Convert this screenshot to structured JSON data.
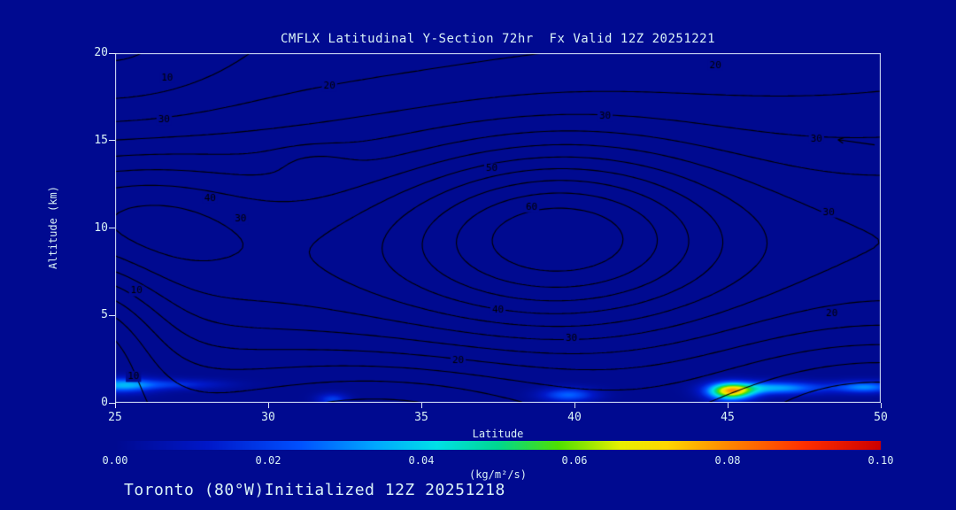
{
  "colors": {
    "background": "#000a90",
    "text": "#d9f2f6",
    "frame": "#dceafc",
    "contour": "#000000"
  },
  "chart_data": {
    "type": "contour",
    "title": "CMFLX Latitudinal Y-Section 72hr  Fx Valid 12Z 20251221",
    "caption": "Toronto (80°W)Initialized 12Z 20251218",
    "xlabel": "Latitude",
    "ylabel": "Altitude (km)",
    "xlim": [
      25,
      50
    ],
    "ylim": [
      0,
      20
    ],
    "x_ticks": [
      25,
      30,
      35,
      40,
      45,
      50
    ],
    "y_ticks": [
      0,
      5,
      10,
      15,
      20
    ],
    "grid": false,
    "contour_interval": 5,
    "contour_levels": [
      5,
      10,
      15,
      20,
      25,
      30,
      35,
      40,
      45,
      50,
      55,
      60,
      65
    ],
    "contour_labels": [
      {
        "value": 10,
        "lat": 26.7,
        "alt": 18.6
      },
      {
        "value": 20,
        "lat": 32.0,
        "alt": 18.1
      },
      {
        "value": 30,
        "lat": 26.6,
        "alt": 16.2
      },
      {
        "value": 30,
        "lat": 41.0,
        "alt": 16.4
      },
      {
        "value": 20,
        "lat": 44.6,
        "alt": 19.3
      },
      {
        "value": 40,
        "lat": 28.1,
        "alt": 11.7
      },
      {
        "value": 30,
        "lat": 29.1,
        "alt": 10.5
      },
      {
        "value": 50,
        "lat": 37.3,
        "alt": 13.4
      },
      {
        "value": 60,
        "lat": 38.6,
        "alt": 11.2
      },
      {
        "value": 40,
        "lat": 37.5,
        "alt": 5.3
      },
      {
        "value": 30,
        "lat": 39.9,
        "alt": 3.7
      },
      {
        "value": 20,
        "lat": 36.2,
        "alt": 2.4
      },
      {
        "value": 20,
        "lat": 48.4,
        "alt": 5.1
      },
      {
        "value": 30,
        "lat": 48.3,
        "alt": 10.9
      },
      {
        "value": 10,
        "lat": 25.7,
        "alt": 6.4
      },
      {
        "value": 10,
        "lat": 25.6,
        "alt": 1.5
      },
      {
        "value": 30,
        "lat": 47.9,
        "alt": 15.1
      }
    ],
    "annotations": [
      {
        "type": "arrow",
        "from_lat": 49.8,
        "from_alt": 14.75,
        "to_lat": 48.6,
        "to_alt": 15.05
      }
    ],
    "field_model": {
      "base": 8,
      "lat_slope": 0.3,
      "bumps": [
        {
          "a": 28,
          "lat": 37.5,
          "alt": 8.3,
          "sx": 9999,
          "sy": 7.5
        },
        {
          "a": 26,
          "lat": 39.5,
          "alt": 9.8,
          "sx": 5.0,
          "sy": 5.0
        },
        {
          "a": 10,
          "lat": 25.5,
          "alt": 10.5,
          "sx": 3.5,
          "sy": 3.5
        },
        {
          "a": 4,
          "lat": 31.5,
          "alt": 13.8,
          "sx": 1.3,
          "sy": 0.9
        },
        {
          "a": -10,
          "lat": 34.0,
          "alt": -0.5,
          "sx": 5.5,
          "sy": 3.2
        },
        {
          "a": -12,
          "lat": 50.0,
          "alt": -0.5,
          "sx": 5.5,
          "sy": 4.0
        },
        {
          "a": -10,
          "lat": 51.0,
          "alt": 6.0,
          "sx": 8.0,
          "sy": 8.0
        },
        {
          "a": -6,
          "lat": 25.0,
          "alt": 20.0,
          "sx": 4.0,
          "sy": 5.0
        },
        {
          "a": -20,
          "lat": 24.0,
          "alt": 4.0,
          "sx": 2.5,
          "sy": 5.0
        }
      ]
    },
    "shaded_blobs": [
      {
        "lat": 45.1,
        "alt": 0.65,
        "sx": 0.75,
        "sy": 0.5,
        "peak": 0.068
      },
      {
        "lat": 46.6,
        "alt": 0.85,
        "sx": 1.6,
        "sy": 0.38,
        "peak": 0.034
      },
      {
        "lat": 25.2,
        "alt": 1.0,
        "sx": 1.1,
        "sy": 0.45,
        "peak": 0.032
      },
      {
        "lat": 27.0,
        "alt": 1.05,
        "sx": 1.6,
        "sy": 0.3,
        "peak": 0.016
      },
      {
        "lat": 39.8,
        "alt": 0.45,
        "sx": 0.9,
        "sy": 0.4,
        "peak": 0.026
      },
      {
        "lat": 32.1,
        "alt": 0.2,
        "sx": 0.5,
        "sy": 0.35,
        "peak": 0.02
      },
      {
        "lat": 49.5,
        "alt": 0.9,
        "sx": 1.0,
        "sy": 0.35,
        "peak": 0.03
      }
    ],
    "colorbar": {
      "min": 0.0,
      "max": 0.1,
      "unit": "(kg/m²/s)",
      "ticks": [
        {
          "label": "0.00",
          "value": 0.0
        },
        {
          "label": "0.02",
          "value": 0.02
        },
        {
          "label": "0.04",
          "value": 0.04
        },
        {
          "label": "0.06",
          "value": 0.06
        },
        {
          "label": "0.08",
          "value": 0.08
        },
        {
          "label": "0.10",
          "value": 0.1
        }
      ],
      "stops": [
        {
          "at": 0.0,
          "color": "#000a90"
        },
        {
          "at": 0.12,
          "color": "#0018c8"
        },
        {
          "at": 0.24,
          "color": "#0050ff"
        },
        {
          "at": 0.34,
          "color": "#00a8ff"
        },
        {
          "at": 0.42,
          "color": "#00e0e8"
        },
        {
          "at": 0.5,
          "color": "#00d890"
        },
        {
          "at": 0.58,
          "color": "#50e000"
        },
        {
          "at": 0.66,
          "color": "#e8f000"
        },
        {
          "at": 0.72,
          "color": "#ffd800"
        },
        {
          "at": 0.8,
          "color": "#ff8800"
        },
        {
          "at": 0.9,
          "color": "#ff3000"
        },
        {
          "at": 1.0,
          "color": "#cc0000"
        }
      ]
    }
  }
}
